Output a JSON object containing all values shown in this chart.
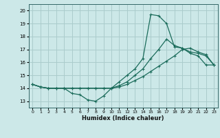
{
  "xlabel": "Humidex (Indice chaleur)",
  "bg_color": "#cce8e8",
  "line_color": "#1a6b5a",
  "grid_color": "#aacccc",
  "xlim": [
    -0.5,
    23.5
  ],
  "ylim": [
    12.5,
    20.5
  ],
  "yticks": [
    13,
    14,
    15,
    16,
    17,
    18,
    19,
    20
  ],
  "xticks": [
    0,
    1,
    2,
    3,
    4,
    5,
    6,
    7,
    8,
    9,
    10,
    11,
    12,
    13,
    14,
    15,
    16,
    17,
    18,
    19,
    20,
    21,
    22,
    23
  ],
  "line1": [
    14.3,
    14.1,
    14.0,
    14.0,
    14.0,
    13.6,
    13.5,
    13.1,
    13.0,
    13.4,
    14.0,
    14.5,
    15.0,
    15.5,
    16.3,
    19.7,
    19.6,
    19.0,
    17.2,
    17.1,
    16.7,
    16.5,
    15.8,
    15.8
  ],
  "line2": [
    14.3,
    14.1,
    14.0,
    14.0,
    14.0,
    14.0,
    14.0,
    14.0,
    14.0,
    14.0,
    14.0,
    14.2,
    14.5,
    15.0,
    15.5,
    16.3,
    17.0,
    17.8,
    17.3,
    17.1,
    16.8,
    16.7,
    16.5,
    15.8
  ],
  "line3": [
    14.3,
    14.1,
    14.0,
    14.0,
    14.0,
    14.0,
    14.0,
    14.0,
    14.0,
    14.0,
    14.0,
    14.1,
    14.3,
    14.6,
    14.9,
    15.3,
    15.7,
    16.1,
    16.5,
    17.0,
    17.1,
    16.8,
    16.6,
    15.8
  ]
}
